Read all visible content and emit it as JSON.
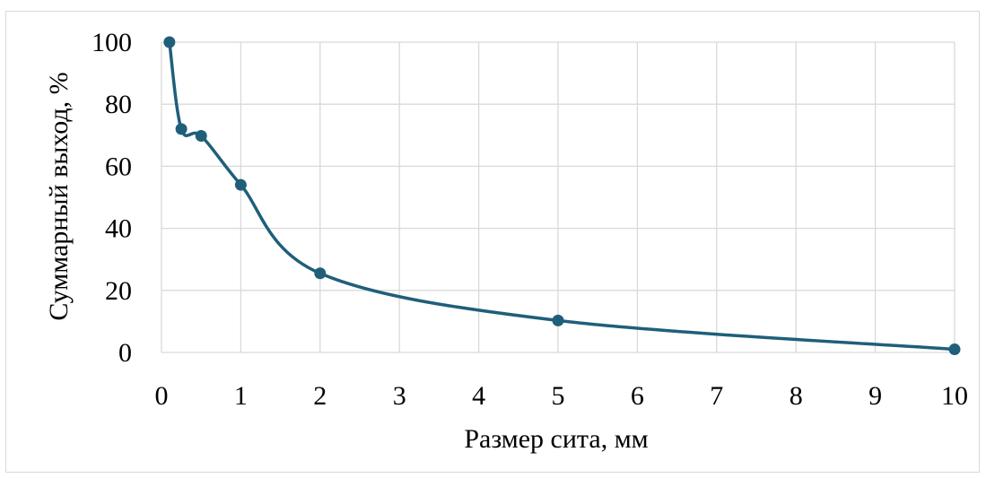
{
  "chart_data": {
    "type": "line",
    "title": "",
    "xlabel": "Размер сита, мм",
    "ylabel": "Суммарный выход, %",
    "xlim": [
      0,
      10
    ],
    "ylim": [
      0,
      100
    ],
    "x_ticks": [
      0,
      1,
      2,
      3,
      4,
      5,
      6,
      7,
      8,
      9,
      10
    ],
    "y_ticks": [
      0,
      20,
      40,
      60,
      80,
      100
    ],
    "grid": true,
    "smooth": true,
    "series": [
      {
        "color": "#1f5f7a",
        "x": [
          0.1,
          0.25,
          0.5,
          1,
          2,
          5,
          10
        ],
        "y": [
          100,
          72,
          69.8,
          54,
          25.5,
          10.3,
          1
        ]
      }
    ]
  }
}
